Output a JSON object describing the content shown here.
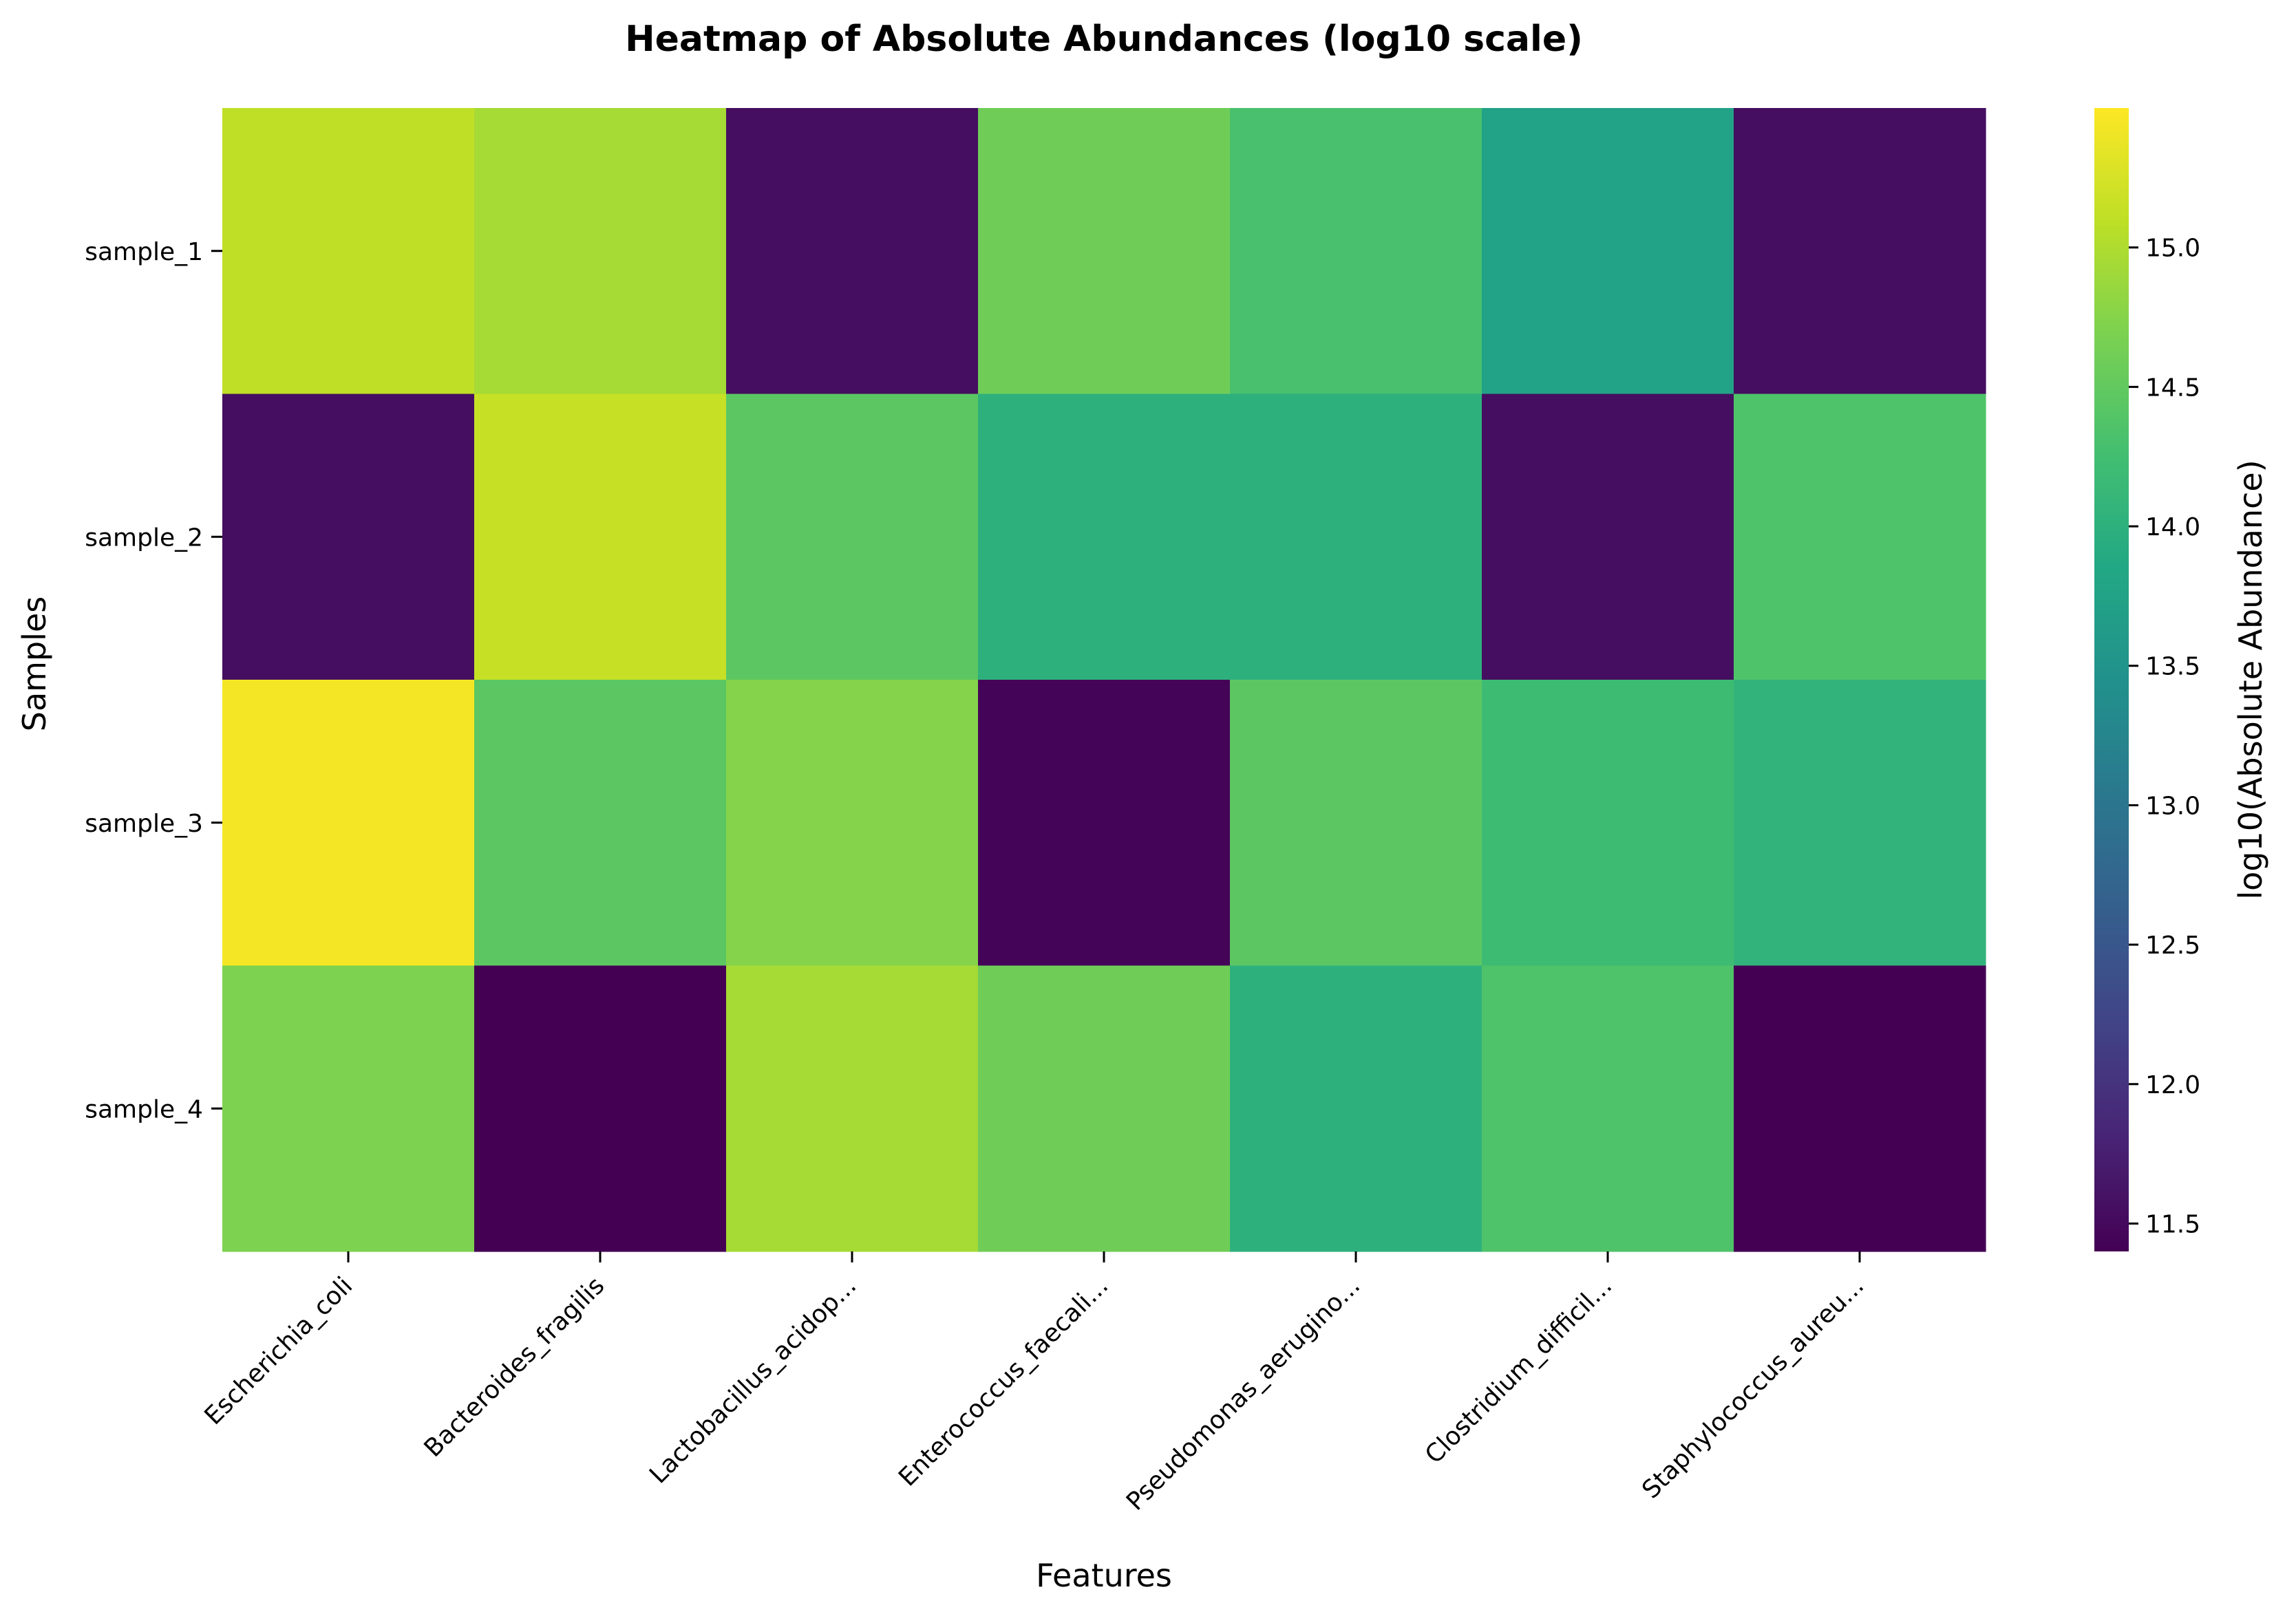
{
  "chart_data": {
    "type": "heatmap",
    "title": "Heatmap of Absolute Abundances (log10 scale)",
    "xlabel": "Features",
    "ylabel": "Samples",
    "x_categories": [
      "Escherichia_coli",
      "Bacteroides_fragilis",
      "Lactobacillus_acidop...",
      "Enterococcus_faecali...",
      "Pseudomonas_aerugino...",
      "Clostridium_difficil...",
      "Staphylococcus_aureu..."
    ],
    "y_categories": [
      "sample_1",
      "sample_2",
      "sample_3",
      "sample_4"
    ],
    "values": [
      [
        15.1,
        14.95,
        11.55,
        14.6,
        14.3,
        13.75,
        11.55
      ],
      [
        11.55,
        15.15,
        14.45,
        14.0,
        14.0,
        11.55,
        14.35
      ],
      [
        15.45,
        14.45,
        14.75,
        11.45,
        14.45,
        14.2,
        14.05
      ],
      [
        14.7,
        11.4,
        14.95,
        14.6,
        14.0,
        14.35,
        11.4
      ]
    ],
    "colormap": "viridis",
    "colorbar": {
      "label": "log10(Absolute Abundance)",
      "range": [
        11.4,
        15.5
      ],
      "ticks": [
        "11.5",
        "12.0",
        "12.5",
        "13.0",
        "13.5",
        "14.0",
        "14.5",
        "15.0"
      ]
    }
  }
}
